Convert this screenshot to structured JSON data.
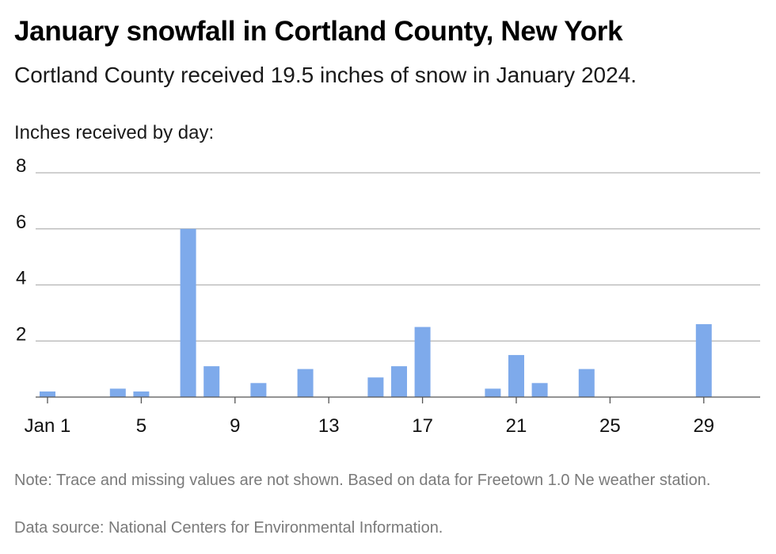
{
  "header": {
    "title": "January snowfall in Cortland County, New York",
    "subtitle": "Cortland County received 19.5 inches of snow in January 2024.",
    "y_caption": "Inches received by day:"
  },
  "footer": {
    "note": "Note: Trace and missing values are not shown. Based on data for Freetown 1.0 Ne weather station.",
    "source": "Data source: National Centers for Environmental Information."
  },
  "colors": {
    "bar": "#7eaaeb",
    "grid": "#b3b3b3",
    "axis": "#555555"
  },
  "chart_data": {
    "type": "bar",
    "title": "January snowfall in Cortland County, New York",
    "subtitle": "Cortland County received 19.5 inches of snow in January 2024.",
    "ylabel": "Inches received by day:",
    "xlabel": "",
    "ylim": [
      0,
      8
    ],
    "yticks": [
      2,
      4,
      6,
      8
    ],
    "xlim": [
      1,
      31
    ],
    "xticks": [
      {
        "day": 1,
        "label": "Jan 1"
      },
      {
        "day": 5,
        "label": "5"
      },
      {
        "day": 9,
        "label": "9"
      },
      {
        "day": 13,
        "label": "13"
      },
      {
        "day": 17,
        "label": "17"
      },
      {
        "day": 21,
        "label": "21"
      },
      {
        "day": 25,
        "label": "25"
      },
      {
        "day": 29,
        "label": "29"
      }
    ],
    "grid": true,
    "x": [
      1,
      4,
      5,
      7,
      8,
      10,
      12,
      15,
      16,
      17,
      20,
      21,
      22,
      24,
      29
    ],
    "values": [
      0.2,
      0.3,
      0.2,
      6.0,
      1.1,
      0.5,
      1.0,
      0.7,
      1.1,
      2.5,
      0.3,
      1.5,
      0.5,
      1.0,
      2.6
    ]
  }
}
